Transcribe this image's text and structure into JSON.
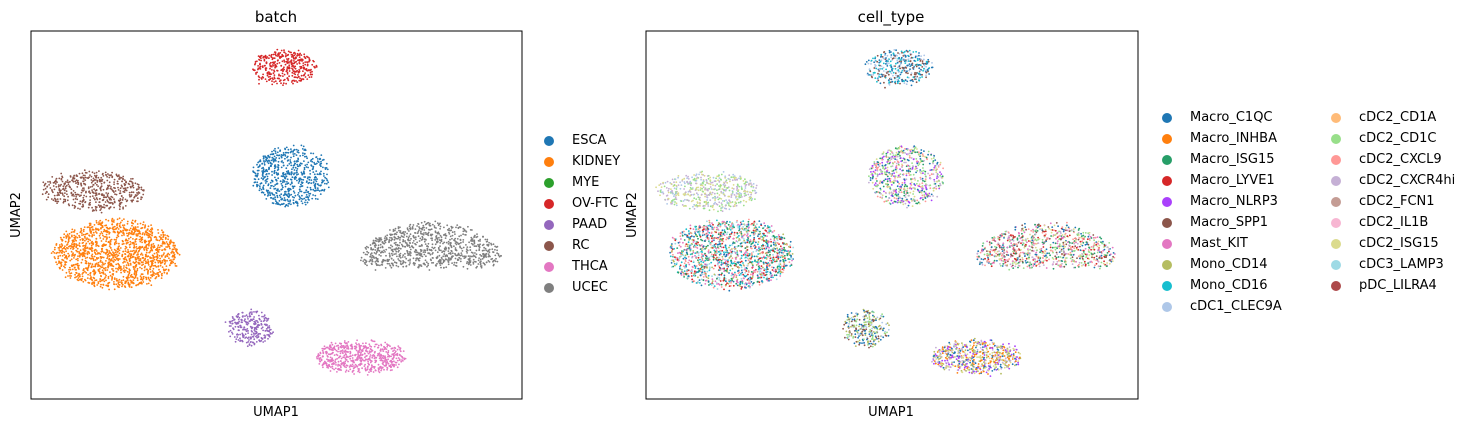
{
  "chart_data": [
    {
      "type": "scatter",
      "title": "batch",
      "xlabel": "UMAP1",
      "ylabel": "UMAP2",
      "grid": false,
      "legend_position": "right",
      "legend": [
        {
          "label": "ESCA",
          "color": "#1f77b4"
        },
        {
          "label": "KIDNEY",
          "color": "#ff7f0e"
        },
        {
          "label": "MYE",
          "color": "#2ca02c"
        },
        {
          "label": "OV-FTC",
          "color": "#d62728"
        },
        {
          "label": "PAAD",
          "color": "#9467bd"
        },
        {
          "label": "RC",
          "color": "#8c564b"
        },
        {
          "label": "THCA",
          "color": "#e377c2"
        },
        {
          "label": "UCEC",
          "color": "#7f7f7f"
        }
      ]
    },
    {
      "type": "scatter",
      "title": "cell_type",
      "xlabel": "UMAP1",
      "ylabel": "UMAP2",
      "grid": false,
      "legend_position": "right",
      "legend": [
        {
          "label": "Macro_C1QC",
          "color": "#1f77b4"
        },
        {
          "label": "Macro_INHBA",
          "color": "#ff7f0e"
        },
        {
          "label": "Macro_ISG15",
          "color": "#279e68"
        },
        {
          "label": "Macro_LYVE1",
          "color": "#d62728"
        },
        {
          "label": "Macro_NLRP3",
          "color": "#aa40fc"
        },
        {
          "label": "Macro_SPP1",
          "color": "#8c564b"
        },
        {
          "label": "Mast_KIT",
          "color": "#e377c2"
        },
        {
          "label": "Mono_CD14",
          "color": "#b5bd61"
        },
        {
          "label": "Mono_CD16",
          "color": "#17becf"
        },
        {
          "label": "cDC1_CLEC9A",
          "color": "#aec7e8"
        },
        {
          "label": "cDC2_CD1A",
          "color": "#ffbb78"
        },
        {
          "label": "cDC2_CD1C",
          "color": "#98df8a"
        },
        {
          "label": "cDC2_CXCL9",
          "color": "#ff9896"
        },
        {
          "label": "cDC2_CXCR4hi",
          "color": "#c5b0d5"
        },
        {
          "label": "cDC2_FCN1",
          "color": "#c49c94"
        },
        {
          "label": "cDC2_IL1B",
          "color": "#f7b6d2"
        },
        {
          "label": "cDC2_ISG15",
          "color": "#dbdb8d"
        },
        {
          "label": "cDC3_LAMP3",
          "color": "#9edae5"
        },
        {
          "label": "pDC_LILRA4",
          "color": "#ad494a"
        }
      ]
    }
  ]
}
